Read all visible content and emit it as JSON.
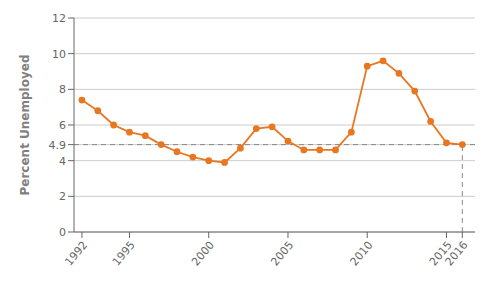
{
  "chart_data": {
    "type": "line",
    "x": [
      1992,
      1993,
      1994,
      1995,
      1996,
      1997,
      1998,
      1999,
      2000,
      2001,
      2002,
      2003,
      2004,
      2005,
      2006,
      2007,
      2008,
      2009,
      2010,
      2011,
      2012,
      2013,
      2014,
      2015,
      2016
    ],
    "values": [
      7.4,
      6.8,
      6.0,
      5.6,
      5.4,
      4.9,
      4.5,
      4.2,
      4.0,
      3.9,
      4.7,
      5.8,
      5.9,
      5.1,
      4.6,
      4.6,
      4.6,
      5.6,
      9.3,
      9.6,
      8.9,
      7.9,
      6.2,
      5.0,
      4.9
    ],
    "color": "#E87722",
    "marker": "circle",
    "y_label": "Percent Unemployed",
    "xlim": [
      1991.5,
      2016.8
    ],
    "xticks": [
      1992,
      1995,
      2000,
      2005,
      2010,
      2015,
      2016
    ],
    "ylim": [
      0,
      12
    ],
    "yticks": [
      0,
      2,
      4,
      6,
      8,
      10,
      12,
      4.9
    ],
    "grid": true,
    "hline": {
      "y": 4.9,
      "color": "#888888",
      "line_style": "dashed"
    },
    "vline": {
      "x": 2016,
      "y_start": 0,
      "y_end": 4.9,
      "color": "#888888",
      "line_style": "dashed"
    }
  }
}
